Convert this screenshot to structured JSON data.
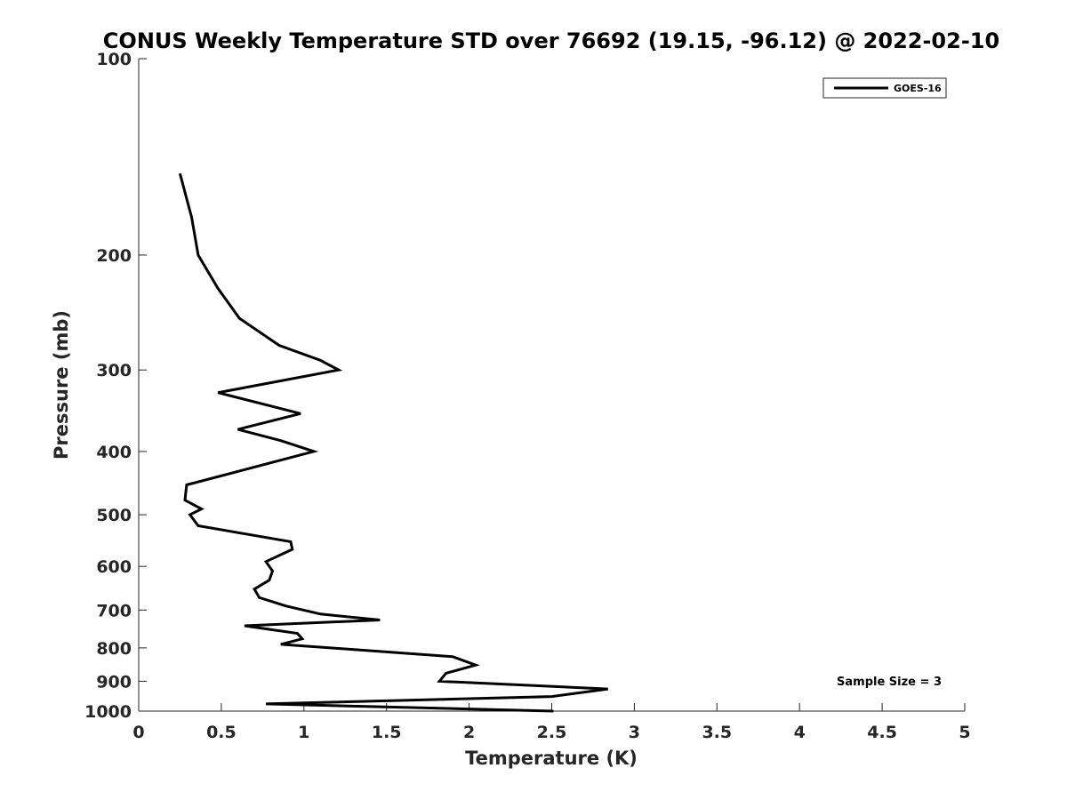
{
  "chart_data": {
    "type": "line",
    "title": "CONUS Weekly Temperature STD over 76692 (19.15, -96.12) @ 2022-02-10",
    "xlabel": "Temperature (K)",
    "ylabel": "Pressure (mb)",
    "xlim": [
      0,
      5
    ],
    "ylim": [
      100,
      1000
    ],
    "yscale": "log",
    "yreversed": true,
    "x_ticks": [
      0,
      0.5,
      1,
      1.5,
      2,
      2.5,
      3,
      3.5,
      4,
      4.5,
      5
    ],
    "x_tick_labels": [
      "0",
      "0.5",
      "1",
      "1.5",
      "2",
      "2.5",
      "3",
      "3.5",
      "4",
      "4.5",
      "5"
    ],
    "y_ticks": [
      100,
      200,
      300,
      400,
      500,
      600,
      700,
      800,
      900,
      1000
    ],
    "y_tick_labels": [
      "100",
      "200",
      "300",
      "400",
      "500",
      "600",
      "700",
      "800",
      "900",
      "1000"
    ],
    "grid": false,
    "legend_position": "top-right",
    "annotation": "Sample Size = 3",
    "series": [
      {
        "name": "GOES-16",
        "color": "#000000",
        "points": [
          {
            "x": 0.25,
            "p": 150
          },
          {
            "x": 0.32,
            "p": 175
          },
          {
            "x": 0.36,
            "p": 200
          },
          {
            "x": 0.48,
            "p": 225
          },
          {
            "x": 0.61,
            "p": 250
          },
          {
            "x": 0.85,
            "p": 275
          },
          {
            "x": 1.1,
            "p": 290
          },
          {
            "x": 1.21,
            "p": 300
          },
          {
            "x": 0.48,
            "p": 325
          },
          {
            "x": 0.98,
            "p": 350
          },
          {
            "x": 0.6,
            "p": 370
          },
          {
            "x": 0.86,
            "p": 385
          },
          {
            "x": 1.06,
            "p": 400
          },
          {
            "x": 0.29,
            "p": 450
          },
          {
            "x": 0.28,
            "p": 475
          },
          {
            "x": 0.38,
            "p": 490
          },
          {
            "x": 0.31,
            "p": 500
          },
          {
            "x": 0.36,
            "p": 520
          },
          {
            "x": 0.92,
            "p": 550
          },
          {
            "x": 0.93,
            "p": 565
          },
          {
            "x": 0.77,
            "p": 590
          },
          {
            "x": 0.81,
            "p": 610
          },
          {
            "x": 0.79,
            "p": 630
          },
          {
            "x": 0.7,
            "p": 650
          },
          {
            "x": 0.73,
            "p": 670
          },
          {
            "x": 0.89,
            "p": 690
          },
          {
            "x": 1.1,
            "p": 710
          },
          {
            "x": 1.46,
            "p": 725
          },
          {
            "x": 0.64,
            "p": 740
          },
          {
            "x": 0.96,
            "p": 760
          },
          {
            "x": 0.99,
            "p": 775
          },
          {
            "x": 0.86,
            "p": 790
          },
          {
            "x": 1.9,
            "p": 825
          },
          {
            "x": 2.04,
            "p": 850
          },
          {
            "x": 1.86,
            "p": 875
          },
          {
            "x": 1.82,
            "p": 900
          },
          {
            "x": 2.84,
            "p": 925
          },
          {
            "x": 2.5,
            "p": 950
          },
          {
            "x": 0.77,
            "p": 975
          },
          {
            "x": 2.51,
            "p": 1000
          }
        ]
      }
    ]
  }
}
